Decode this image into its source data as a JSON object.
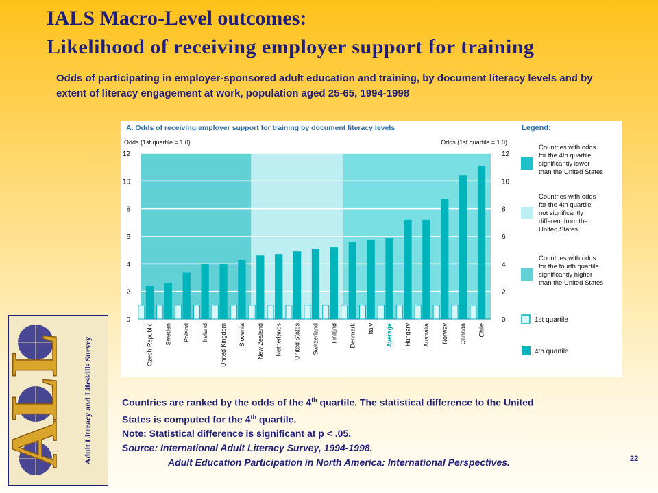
{
  "slide": {
    "title_line1": "IALS Macro-Level outcomes:",
    "title_line2": "Likelihood of receiving employer support for training",
    "subtitle": "Odds of participating in employer-sponsored adult education and training, by document literacy levels and by extent of literacy engagement at work, population aged 25-65, 1994-1998",
    "note_line1_a": "Countries are ranked by the odds of the 4",
    "note_line1_sup": "th",
    "note_line1_b": " quartile.  The statistical difference to the United",
    "note_line2_a": "States is computed for the 4",
    "note_line2_sup": "th",
    "note_line2_b": " quartile.",
    "note_line3": "Note:  Statistical difference is significant at p < .05.",
    "source_line1": "Source:  International Adult Literacy Survey, 1994-1998.",
    "source_line2": "Adult Education Participation in North America: International Perspectives.",
    "page_number": "22",
    "logo_letters": "ALL",
    "logo_text": "Adult Literacy and Lifeskills Survey"
  },
  "chart_data": {
    "type": "bar",
    "title": "A.    Odds of receiving employer support for training by document literacy levels",
    "ylabel_left": "Odds (1st quartile = 1.0)",
    "ylabel_right": "Odds (1st quartile = 1.0)",
    "ylim": [
      0,
      12
    ],
    "yticks": [
      0,
      2,
      4,
      6,
      8,
      10,
      12
    ],
    "grid": true,
    "categories": [
      "Czech Republic",
      "Sweden",
      "Poland",
      "Ireland",
      "United Kingdom",
      "Slovenia",
      "New Zealand",
      "Netherlands",
      "United States",
      "Switzerland",
      "Finland",
      "Denmark",
      "Italy",
      "Average",
      "Hungary",
      "Australia",
      "Norway",
      "Canada",
      "Chile"
    ],
    "highlight_category": "Average",
    "groups": [
      {
        "label": "Countries with odds for the 4th quartile significantly lower than the United States",
        "from": 0,
        "to": 5,
        "color": "#62d1d6"
      },
      {
        "label": "Countries with odds for the 4th quartile not significantly different from the United States",
        "from": 6,
        "to": 10,
        "color": "#bdeef1"
      },
      {
        "label": "Countries with odds for the fourth quartile significantly higher than the United States",
        "from": 11,
        "to": 18,
        "color": "#79dfe2"
      }
    ],
    "series": [
      {
        "name": "1st quartile",
        "values": [
          1,
          1,
          1,
          1,
          1,
          1,
          1,
          1,
          1,
          1,
          1,
          1,
          1,
          1,
          1,
          1,
          1,
          1,
          1
        ],
        "color": "#d9f7f8"
      },
      {
        "name": "4th quartile",
        "values": [
          2.4,
          2.6,
          3.4,
          4.0,
          4.0,
          4.3,
          4.6,
          4.7,
          4.9,
          5.1,
          5.2,
          5.6,
          5.7,
          5.9,
          7.2,
          7.2,
          8.7,
          10.4,
          11.1
        ],
        "color": "#00b4bc"
      }
    ],
    "legend": {
      "title": "Legend:",
      "placement": "right"
    }
  }
}
